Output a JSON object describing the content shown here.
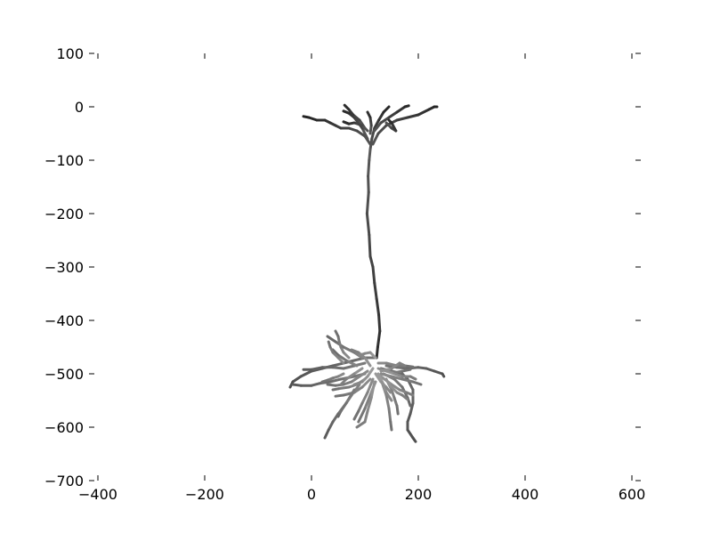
{
  "chart_data": {
    "type": "line",
    "title": "",
    "xlabel": "",
    "ylabel": "",
    "xlim": [
      -400,
      600
    ],
    "ylim": [
      -700,
      100
    ],
    "xticks": [
      -400,
      -200,
      0,
      200,
      400,
      600
    ],
    "yticks": [
      100,
      0,
      -100,
      -200,
      -300,
      -400,
      -500,
      -600,
      -700
    ],
    "xtick_labels": [
      "−400",
      "−200",
      "0",
      "200",
      "400",
      "600"
    ],
    "ytick_labels": [
      "100",
      "0",
      "−100",
      "−200",
      "−300",
      "−400",
      "−500",
      "−600",
      "−700"
    ],
    "grid": false,
    "frame": "none",
    "colormap": "greyscale: light at soma, dark at distal tips",
    "series": [
      {
        "depth": 0.95,
        "points": [
          [
            110,
            -80
          ],
          [
            113,
            -60
          ],
          [
            118,
            -40
          ],
          [
            126,
            -25
          ],
          [
            135,
            -10
          ],
          [
            145,
            0
          ]
        ]
      },
      {
        "depth": 0.95,
        "points": [
          [
            115,
            -70
          ],
          [
            125,
            -50
          ],
          [
            140,
            -35
          ],
          [
            160,
            -25
          ],
          [
            180,
            -20
          ],
          [
            200,
            -15
          ],
          [
            220,
            -5
          ],
          [
            230,
            0
          ],
          [
            235,
            0
          ]
        ]
      },
      {
        "depth": 0.95,
        "points": [
          [
            110,
            -70
          ],
          [
            100,
            -55
          ],
          [
            85,
            -45
          ],
          [
            70,
            -40
          ],
          [
            55,
            -40
          ],
          [
            45,
            -35
          ],
          [
            35,
            -30
          ],
          [
            25,
            -25
          ],
          [
            10,
            -25
          ],
          [
            -5,
            -20
          ],
          [
            -15,
            -18
          ]
        ]
      },
      {
        "depth": 0.95,
        "points": [
          [
            105,
            -60
          ],
          [
            95,
            -40
          ],
          [
            80,
            -20
          ],
          [
            70,
            -12
          ],
          [
            60,
            -8
          ]
        ]
      },
      {
        "depth": 0.95,
        "points": [
          [
            100,
            -40
          ],
          [
            90,
            -25
          ],
          [
            78,
            -15
          ],
          [
            70,
            -5
          ],
          [
            62,
            3
          ]
        ]
      },
      {
        "depth": 0.95,
        "points": [
          [
            110,
            -50
          ],
          [
            112,
            -35
          ],
          [
            110,
            -20
          ],
          [
            105,
            -10
          ]
        ]
      },
      {
        "depth": 0.95,
        "points": [
          [
            118,
            -45
          ],
          [
            130,
            -30
          ],
          [
            145,
            -20
          ],
          [
            160,
            -10
          ],
          [
            175,
            0
          ],
          [
            182,
            2
          ]
        ]
      },
      {
        "depth": 0.95,
        "points": [
          [
            105,
            -45
          ],
          [
            95,
            -35
          ],
          [
            80,
            -30
          ],
          [
            70,
            -32
          ],
          [
            60,
            -28
          ]
        ]
      },
      {
        "depth": 0.95,
        "points": [
          [
            140,
            -30
          ],
          [
            150,
            -40
          ],
          [
            158,
            -45
          ],
          [
            150,
            -30
          ],
          [
            145,
            -25
          ]
        ]
      },
      {
        "depth": 0.9,
        "points": [
          [
            110,
            -80
          ],
          [
            108,
            -100
          ],
          [
            106,
            -130
          ],
          [
            107,
            -160
          ],
          [
            104,
            -200
          ],
          [
            108,
            -240
          ],
          [
            110,
            -280
          ],
          [
            115,
            -300
          ],
          [
            118,
            -330
          ],
          [
            122,
            -360
          ],
          [
            126,
            -390
          ],
          [
            128,
            -420
          ],
          [
            124,
            -450
          ],
          [
            122,
            -470
          ]
        ]
      },
      {
        "depth": 0.75,
        "points": [
          [
            120,
            -470
          ],
          [
            100,
            -470
          ],
          [
            80,
            -475
          ],
          [
            60,
            -480
          ],
          [
            40,
            -485
          ],
          [
            20,
            -490
          ],
          [
            0,
            -495
          ],
          [
            -20,
            -505
          ],
          [
            -35,
            -515
          ],
          [
            -40,
            -525
          ]
        ]
      },
      {
        "depth": 0.7,
        "points": [
          [
            100,
            -480
          ],
          [
            80,
            -485
          ],
          [
            60,
            -490
          ],
          [
            40,
            -488
          ],
          [
            20,
            -488
          ],
          [
            0,
            -492
          ],
          [
            -15,
            -492
          ]
        ]
      },
      {
        "depth": 0.7,
        "points": [
          [
            100,
            -500
          ],
          [
            80,
            -505
          ],
          [
            55,
            -510
          ],
          [
            35,
            -515
          ],
          [
            15,
            -518
          ],
          [
            0,
            -522
          ],
          [
            -20,
            -522
          ],
          [
            -35,
            -520
          ]
        ]
      },
      {
        "depth": 0.65,
        "points": [
          [
            95,
            -470
          ],
          [
            80,
            -460
          ],
          [
            60,
            -450
          ],
          [
            45,
            -440
          ],
          [
            30,
            -430
          ]
        ]
      },
      {
        "depth": 0.65,
        "points": [
          [
            85,
            -485
          ],
          [
            65,
            -475
          ],
          [
            50,
            -465
          ],
          [
            40,
            -455
          ]
        ]
      },
      {
        "depth": 0.6,
        "points": [
          [
            105,
            -495
          ],
          [
            90,
            -505
          ],
          [
            75,
            -515
          ],
          [
            60,
            -520
          ],
          [
            45,
            -522
          ],
          [
            30,
            -520
          ]
        ]
      },
      {
        "depth": 0.6,
        "points": [
          [
            100,
            -510
          ],
          [
            85,
            -520
          ],
          [
            70,
            -525
          ],
          [
            50,
            -528
          ],
          [
            40,
            -530
          ]
        ]
      },
      {
        "depth": 0.6,
        "points": [
          [
            110,
            -510
          ],
          [
            95,
            -525
          ],
          [
            80,
            -535
          ],
          [
            60,
            -540
          ],
          [
            45,
            -542
          ]
        ]
      },
      {
        "depth": 0.65,
        "points": [
          [
            90,
            -520
          ],
          [
            75,
            -540
          ],
          [
            65,
            -555
          ],
          [
            55,
            -570
          ],
          [
            50,
            -580
          ]
        ]
      },
      {
        "depth": 0.7,
        "points": [
          [
            80,
            -530
          ],
          [
            65,
            -555
          ],
          [
            50,
            -575
          ],
          [
            40,
            -590
          ],
          [
            32,
            -605
          ],
          [
            25,
            -620
          ]
        ]
      },
      {
        "depth": 0.6,
        "points": [
          [
            115,
            -510
          ],
          [
            105,
            -535
          ],
          [
            95,
            -555
          ],
          [
            88,
            -570
          ],
          [
            80,
            -585
          ]
        ]
      },
      {
        "depth": 0.6,
        "points": [
          [
            120,
            -515
          ],
          [
            110,
            -540
          ],
          [
            100,
            -565
          ],
          [
            88,
            -590
          ]
        ]
      },
      {
        "depth": 0.55,
        "points": [
          [
            118,
            -515
          ],
          [
            112,
            -545
          ],
          [
            105,
            -570
          ],
          [
            100,
            -590
          ],
          [
            85,
            -600
          ]
        ]
      },
      {
        "depth": 0.6,
        "points": [
          [
            130,
            -510
          ],
          [
            140,
            -540
          ],
          [
            145,
            -565
          ],
          [
            148,
            -590
          ],
          [
            150,
            -605
          ]
        ]
      },
      {
        "depth": 0.75,
        "points": [
          [
            130,
            -490
          ],
          [
            150,
            -495
          ],
          [
            170,
            -500
          ],
          [
            180,
            -510
          ],
          [
            190,
            -530
          ],
          [
            190,
            -555
          ],
          [
            185,
            -575
          ],
          [
            180,
            -590
          ],
          [
            180,
            -605
          ],
          [
            190,
            -620
          ],
          [
            195,
            -627
          ]
        ]
      },
      {
        "depth": 0.65,
        "points": [
          [
            135,
            -500
          ],
          [
            155,
            -510
          ],
          [
            170,
            -525
          ],
          [
            180,
            -545
          ],
          [
            185,
            -560
          ]
        ]
      },
      {
        "depth": 0.6,
        "points": [
          [
            140,
            -510
          ],
          [
            150,
            -530
          ],
          [
            155,
            -545
          ],
          [
            160,
            -560
          ],
          [
            162,
            -575
          ]
        ]
      },
      {
        "depth": 0.75,
        "points": [
          [
            140,
            -485
          ],
          [
            160,
            -488
          ],
          [
            180,
            -490
          ],
          [
            200,
            -488
          ],
          [
            215,
            -490
          ],
          [
            230,
            -495
          ],
          [
            245,
            -500
          ],
          [
            248,
            -505
          ]
        ]
      },
      {
        "depth": 0.6,
        "points": [
          [
            130,
            -500
          ],
          [
            150,
            -505
          ],
          [
            170,
            -510
          ],
          [
            190,
            -515
          ],
          [
            205,
            -520
          ]
        ]
      },
      {
        "depth": 0.6,
        "points": [
          [
            125,
            -480
          ],
          [
            140,
            -480
          ],
          [
            160,
            -485
          ],
          [
            175,
            -485
          ],
          [
            190,
            -487
          ]
        ]
      },
      {
        "depth": 0.6,
        "points": [
          [
            125,
            -490
          ],
          [
            140,
            -495
          ],
          [
            155,
            -498
          ],
          [
            170,
            -495
          ],
          [
            185,
            -492
          ]
        ]
      },
      {
        "depth": 0.55,
        "points": [
          [
            130,
            -505
          ],
          [
            150,
            -520
          ],
          [
            165,
            -530
          ],
          [
            178,
            -535
          ],
          [
            190,
            -540
          ]
        ]
      },
      {
        "depth": 0.55,
        "points": [
          [
            110,
            -485
          ],
          [
            100,
            -470
          ],
          [
            88,
            -460
          ],
          [
            75,
            -455
          ]
        ]
      },
      {
        "depth": 0.5,
        "points": [
          [
            120,
            -470
          ],
          [
            115,
            -465
          ],
          [
            110,
            -460
          ],
          [
            100,
            -462
          ],
          [
            90,
            -465
          ]
        ]
      },
      {
        "depth": 0.5,
        "points": [
          [
            125,
            -500
          ],
          [
            135,
            -520
          ],
          [
            140,
            -535
          ],
          [
            150,
            -550
          ]
        ]
      },
      {
        "depth": 0.55,
        "points": [
          [
            95,
            -490
          ],
          [
            80,
            -500
          ],
          [
            65,
            -510
          ],
          [
            55,
            -520
          ]
        ]
      },
      {
        "depth": 0.55,
        "points": [
          [
            130,
            -495
          ],
          [
            150,
            -490
          ],
          [
            165,
            -480
          ],
          [
            175,
            -485
          ]
        ]
      },
      {
        "depth": 0.5,
        "points": [
          [
            115,
            -490
          ],
          [
            105,
            -505
          ],
          [
            95,
            -515
          ],
          [
            80,
            -520
          ]
        ]
      },
      {
        "depth": 0.5,
        "points": [
          [
            120,
            -500
          ],
          [
            130,
            -515
          ],
          [
            140,
            -525
          ],
          [
            148,
            -535
          ]
        ]
      },
      {
        "depth": 0.6,
        "points": [
          [
            70,
            -470
          ],
          [
            60,
            -460
          ],
          [
            55,
            -450
          ],
          [
            52,
            -440
          ],
          [
            50,
            -430
          ],
          [
            45,
            -420
          ]
        ]
      },
      {
        "depth": 0.6,
        "points": [
          [
            60,
            -480
          ],
          [
            50,
            -470
          ],
          [
            40,
            -460
          ],
          [
            35,
            -450
          ],
          [
            32,
            -440
          ]
        ]
      },
      {
        "depth": 0.6,
        "points": [
          [
            60,
            -500
          ],
          [
            50,
            -505
          ],
          [
            40,
            -508
          ],
          [
            30,
            -512
          ],
          [
            20,
            -515
          ]
        ]
      },
      {
        "depth": 0.55,
        "points": [
          [
            145,
            -520
          ],
          [
            160,
            -535
          ],
          [
            170,
            -540
          ],
          [
            180,
            -548
          ]
        ]
      },
      {
        "depth": 0.55,
        "points": [
          [
            140,
            -495
          ],
          [
            155,
            -500
          ],
          [
            170,
            -505
          ],
          [
            185,
            -505
          ],
          [
            195,
            -510
          ]
        ]
      }
    ]
  }
}
